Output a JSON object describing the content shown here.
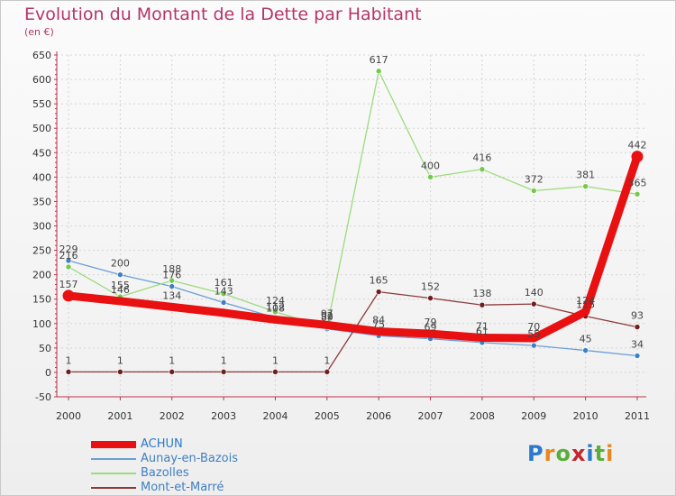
{
  "page": {
    "title": "Evolution du Montant de la Dette par Habitant",
    "subtitle": "(en €)",
    "brand": "Proxiti",
    "brand_colors": [
      "#2b79c9",
      "#e8871f",
      "#5aaf3c",
      "#c4262e",
      "#2b79c9",
      "#5aaf3c",
      "#e8871f"
    ],
    "title_color": "#b4366a"
  },
  "chart_data": {
    "type": "line",
    "title": "Evolution du Montant de la Dette par Habitant",
    "subtitle": "(en €)",
    "xlabel": "",
    "ylabel": "",
    "x": [
      "2000",
      "2001",
      "2002",
      "2003",
      "2004",
      "2005",
      "2006",
      "2007",
      "2008",
      "2009",
      "2010",
      "2011"
    ],
    "ylim": [
      -50,
      650
    ],
    "yticks": [
      "-50",
      "0",
      "50",
      "100",
      "150",
      "200",
      "250",
      "300",
      "350",
      "400",
      "450",
      "500",
      "550",
      "600",
      "650"
    ],
    "grid": true,
    "legend_position": "bottom-left",
    "series": [
      {
        "name": "Aunay-en-Bazois",
        "color": "#6a9fd6",
        "point_color": "#3c7fc4",
        "values": [
          229,
          200,
          176,
          143,
          112,
          89,
          75,
          69,
          61,
          55,
          45,
          34
        ],
        "labels": [
          "229",
          "200",
          "176",
          "143",
          "112",
          "89",
          "75",
          "69",
          "61",
          "55",
          "45",
          "34"
        ]
      },
      {
        "name": "Bazolles",
        "color": "#9bdc7c",
        "point_color": "#74c84c",
        "values": [
          216,
          155,
          188,
          161,
          124,
          92,
          617,
          400,
          416,
          372,
          381,
          365
        ],
        "labels": [
          "216",
          "155",
          "188",
          "161",
          "124",
          "92",
          "617",
          "400",
          "416",
          "372",
          "381",
          "365"
        ]
      },
      {
        "name": "Mont-et-Marré",
        "color": "#8c3a3a",
        "point_color": "#6e1e1e",
        "values": [
          1,
          1,
          1,
          1,
          1,
          1,
          165,
          152,
          138,
          140,
          115,
          93
        ],
        "labels": [
          "1",
          "1",
          "1",
          "1",
          "1",
          "1",
          "165",
          "152",
          "138",
          "140",
          "115",
          "93"
        ]
      },
      {
        "name": "ACHUN",
        "color": "#e81010",
        "point_color": "#e81010",
        "values": [
          157,
          146,
          134,
          122,
          108,
          97,
          84,
          79,
          71,
          70,
          124,
          442
        ],
        "labels": [
          "157",
          "146",
          "134",
          "",
          "108",
          "97",
          "84",
          "79",
          "71",
          "70",
          "124",
          "442"
        ]
      }
    ],
    "legend": [
      "ACHUN",
      "Aunay-en-Bazois",
      "Bazolles",
      "Mont-et-Marré"
    ]
  }
}
